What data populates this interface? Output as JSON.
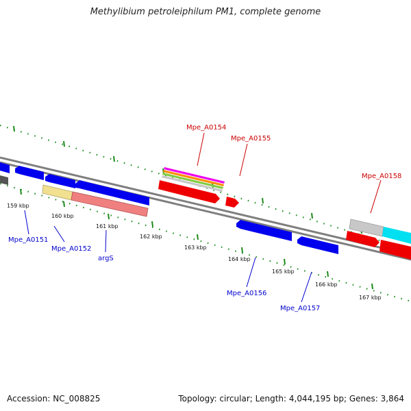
{
  "title": "Methylibium petroleiphilum PM1, complete genome",
  "footer": {
    "accession": "Accession: NC_008825",
    "summary": "Topology: circular; Length: 4,044,195 bp; Genes: 3,864"
  },
  "ticks": [
    "159 kbp",
    "160 kbp",
    "161 kbp",
    "162 kbp",
    "163 kbp",
    "164 kbp",
    "165 kbp",
    "166 kbp",
    "167 kbp"
  ],
  "gene_labels": [
    {
      "text": "Mpe_A0151",
      "color": "#0000cc"
    },
    {
      "text": "Mpe_A0152",
      "color": "#0000cc"
    },
    {
      "text": "argS",
      "color": "#0000cc"
    },
    {
      "text": "Mpe_A0154",
      "color": "#cc0000"
    },
    {
      "text": "Mpe_A0155",
      "color": "#cc0000"
    },
    {
      "text": "Mpe_A0156",
      "color": "#0000cc"
    },
    {
      "text": "Mpe_A0157",
      "color": "#0000cc"
    },
    {
      "text": "Mpe_A0158",
      "color": "#cc0000"
    }
  ],
  "colors": {
    "backbone": "#7f7f7f",
    "tick_mark": "#1a8a1a",
    "reverse_gene": "#0000ee",
    "forward_gene": "#ee0000",
    "rna_feature": "#f0e090",
    "pseudogene": "#f08080",
    "misc_feature": "#c8c8c8",
    "cds_feature": "#00e0f0",
    "dark_feature": "#555555"
  }
}
